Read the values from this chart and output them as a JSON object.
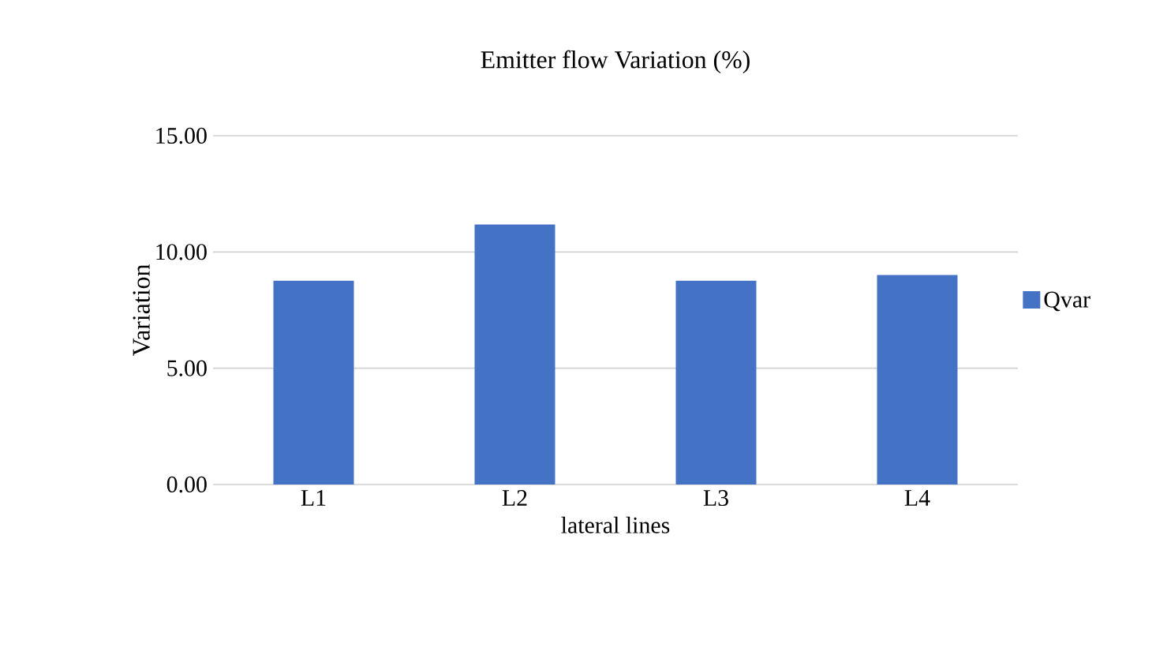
{
  "chart_data": {
    "type": "bar",
    "title": "Emitter flow Variation (%)",
    "xlabel": "lateral lines",
    "ylabel": "Variation",
    "categories": [
      "L1",
      "L2",
      "L3",
      "L4"
    ],
    "series": [
      {
        "name": "Qvar",
        "color": "#4472c4",
        "values": [
          8.76,
          11.18,
          8.76,
          9.01
        ]
      }
    ],
    "ylim": [
      0,
      15
    ],
    "yticks": [
      {
        "value": 0,
        "label": "0.00"
      },
      {
        "value": 5,
        "label": "5.00"
      },
      {
        "value": 10,
        "label": "10.00"
      },
      {
        "value": 15,
        "label": "15.00"
      }
    ],
    "grid": "y",
    "legend": "right"
  }
}
